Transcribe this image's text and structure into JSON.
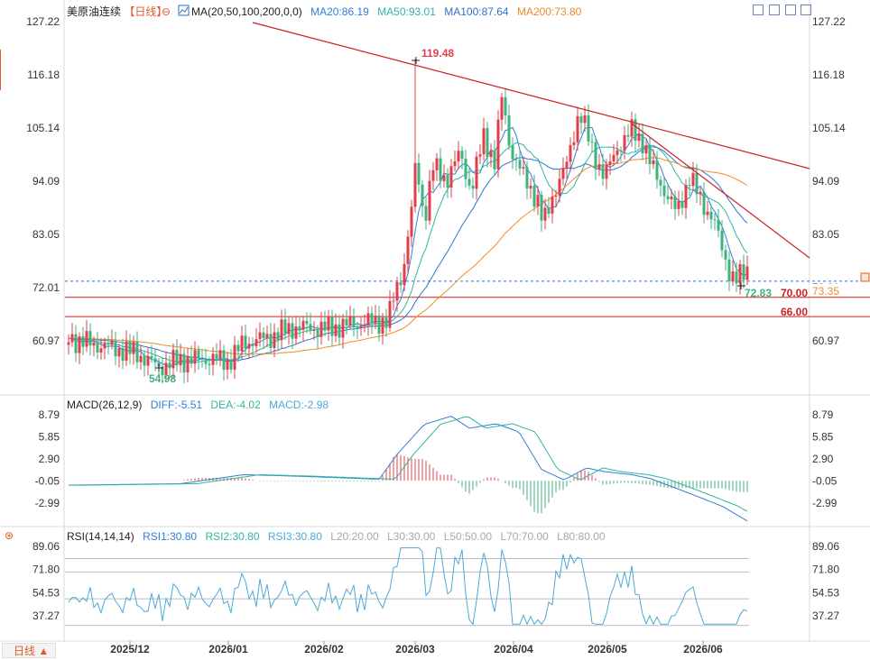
{
  "header": {
    "symbol": "美原油连续",
    "period": "【日线】",
    "ma_label": "MA(20,50,100,200,0,0)",
    "ma20": "MA20:86.19",
    "ma50": "MA50:93.01",
    "ma100": "MA100:87.64",
    "ma200": "MA200:73.80"
  },
  "macd_header": {
    "label": "MACD(26,12,9)",
    "diff": "DIFF:-5.51",
    "dea": "DEA:-4.02",
    "macd": "MACD:-2.98"
  },
  "rsi_header": {
    "label": "RSI(14,14,14)",
    "rsi1": "RSI1:30.80",
    "rsi2": "RSI2:30.80",
    "rsi3": "RSI3:30.80",
    "l20": "L20:20.00",
    "l30": "L30:30.00",
    "l50": "L50:50.00",
    "l70": "L70:70.00",
    "l80": "L80:80.00"
  },
  "period_button": "日线 ▲",
  "colors": {
    "up": "#e0404a",
    "down": "#3fb27f",
    "ma20": "#2f7fd6",
    "ma50": "#31b5a0",
    "ma100": "#2f74c9",
    "ma200": "#f08a2a",
    "level": "#cc1f1f",
    "rsi": "#4aa9d8"
  },
  "chart_data": [
    {
      "type": "candlestick",
      "title": "美原油连续",
      "y_ticks": [
        127.22,
        116.18,
        105.14,
        94.09,
        83.05,
        72.01,
        60.97
      ],
      "x_ticks": [
        "2025/12",
        "2026/01",
        "2026/02",
        "2026/03",
        "2026/04",
        "2026/05",
        "2026/06"
      ],
      "annotations": {
        "high": "119.48",
        "low": "54.98",
        "last": "72.83",
        "ma200_tag": "73.35",
        "level_70": "70.00",
        "level_66": "66.00"
      },
      "levels": [
        70.0,
        66.0
      ],
      "current_price_line": 73.35,
      "trendlines": [
        {
          "from": [
            "2025/12",
            126.5
          ],
          "to": [
            "2026/06",
            96.5
          ]
        },
        {
          "from": [
            "2026/05",
            106.5
          ],
          "to": [
            "2026/06",
            78.0
          ]
        }
      ]
    },
    {
      "type": "line",
      "title": "MACD(26,12,9)",
      "y_ticks": [
        8.79,
        5.85,
        2.9,
        -0.05,
        -2.99
      ],
      "series": [
        {
          "name": "DIFF",
          "last": -5.51
        },
        {
          "name": "DEA",
          "last": -4.02
        },
        {
          "name": "MACD",
          "last": -2.98
        }
      ]
    },
    {
      "type": "line",
      "title": "RSI(14,14,14)",
      "y_ticks": [
        89.06,
        71.8,
        54.53,
        37.27
      ],
      "reference_lines": [
        80,
        70,
        50,
        30,
        20
      ],
      "series": [
        {
          "name": "RSI1",
          "last": 30.8
        }
      ]
    }
  ]
}
